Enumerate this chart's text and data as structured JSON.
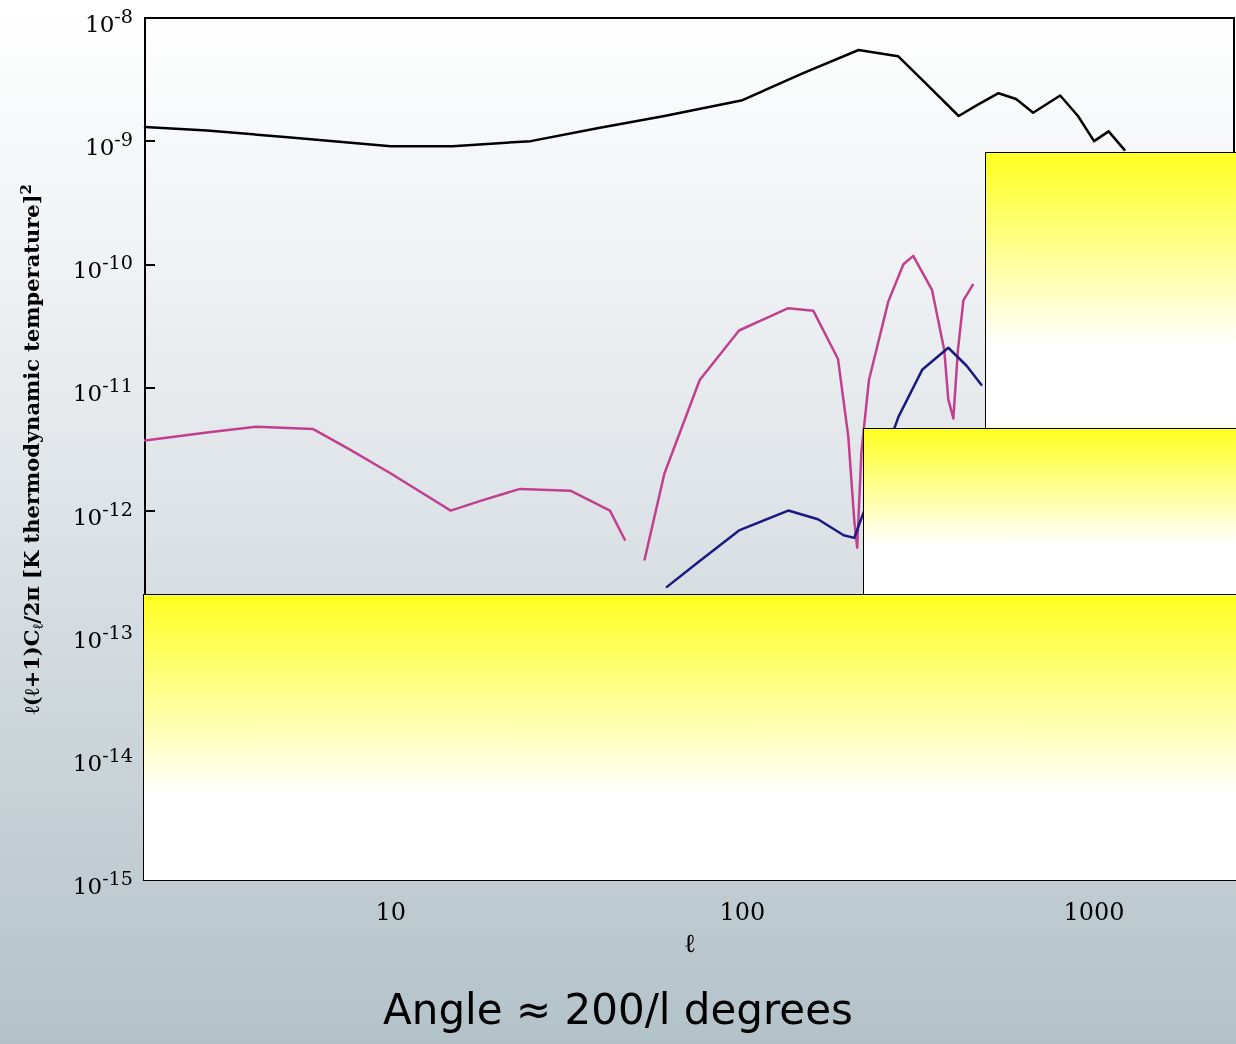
{
  "chart_data": {
    "type": "line",
    "xlabel": "ℓ",
    "ylabel": "ℓ(ℓ+1)C$_{ℓ}$/2π [K thermodynamic temperature]$^{2}$",
    "annotations": [
      "Angle ≈ 200/l degrees"
    ],
    "log": "xy",
    "grid": false,
    "marker": "none",
    "line_style": "solid",
    "xlim": [
      2,
      2500
    ],
    "xticks": [
      10,
      100,
      1000
    ],
    "ylim": [
      1e-15,
      1e-08
    ],
    "yticks": [
      {
        "value": 1e-15,
        "label": "10$^{-15}$"
      },
      {
        "value": 1e-14,
        "label": "10$^{-14}$"
      },
      {
        "value": 1e-13,
        "label": "10$^{-13}$"
      },
      {
        "value": 1e-12,
        "label": "10$^{-12}$"
      },
      {
        "value": 1e-11,
        "label": "10$^{-11}$"
      },
      {
        "value": 1e-10,
        "label": "10$^{-10}$"
      },
      {
        "value": 1e-09,
        "label": "10$^{-9}$"
      },
      {
        "value": 1e-08,
        "label": "10$^{-8}$"
      }
    ],
    "series": [
      {
        "color": "#000000",
        "x": [
          2,
          3,
          5,
          10,
          15,
          25,
          39,
          60,
          100,
          150,
          214,
          277,
          330,
          412,
          470,
          535,
          600,
          671,
          801,
          900,
          1000,
          1100,
          1220
        ],
        "values": [
          1.3e-09,
          1.22e-09,
          1.08e-09,
          9.1e-10,
          9.1e-10,
          1e-09,
          1.28e-09,
          1.6e-09,
          2.15e-09,
          3.6e-09,
          5.5e-09,
          4.9e-09,
          3e-09,
          1.6e-09,
          2e-09,
          2.45e-09,
          2.2e-09,
          1.7e-09,
          2.35e-09,
          1.6e-09,
          1e-09,
          1.2e-09,
          8.5e-10
        ]
      },
      {
        "color": "#c0408f",
        "x": [
          2,
          3,
          4.15,
          6,
          7.7,
          10,
          14.8,
          18,
          23.3,
          32.4,
          42,
          46.3,
          49.7,
          52.7,
          60,
          75.6,
          97.8,
          135,
          159,
          187,
          200,
          208,
          212,
          218,
          229,
          260,
          287,
          306,
          346,
          375,
          385,
          398,
          410,
          425,
          452
        ],
        "values": [
          3.7e-12,
          4.3e-12,
          4.8e-12,
          4.6e-12,
          3.1e-12,
          2e-12,
          1e-12,
          1.2e-12,
          1.5e-12,
          1.45e-12,
          1e-12,
          5.8e-13,
          null,
          4e-13,
          2e-12,
          1.15e-11,
          2.9e-11,
          4.4e-11,
          4.2e-11,
          1.7e-11,
          4e-12,
          8.3e-13,
          5e-13,
          3e-12,
          1.15e-11,
          5e-11,
          1e-10,
          1.17e-10,
          6.2e-11,
          2e-11,
          8e-12,
          5.6e-12,
          2e-11,
          5.1e-11,
          6.8e-11
        ]
      },
      {
        "color": "#1a1a80",
        "x": [
          61,
          75.6,
          97.8,
          135,
          164,
          194,
          208,
          278,
          325,
          385,
          434,
          478
        ],
        "values": [
          2.4e-13,
          3.9e-13,
          6.9e-13,
          1e-12,
          8.5e-13,
          6.3e-13,
          6e-13,
          5.8e-12,
          1.4e-11,
          2.1e-11,
          1.5e-11,
          1.05e-11
        ]
      }
    ]
  }
}
